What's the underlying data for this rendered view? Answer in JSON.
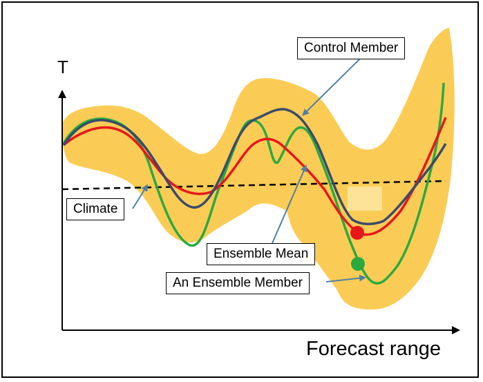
{
  "axis": {
    "y_label": "T",
    "x_label": "Forecast range"
  },
  "labels": {
    "control_member": "Control Member",
    "climate": "Climate",
    "ensemble_mean": "Ensemble Mean",
    "ensemble_member": "An Ensemble Member"
  },
  "colors": {
    "spread": "#fbcc55",
    "ensemble_mean": "#e8161b",
    "ensemble_member": "#2aa93f",
    "control_member": "#3a4a6a",
    "climate": "#000000",
    "pointer": "#4d7fa7"
  }
}
